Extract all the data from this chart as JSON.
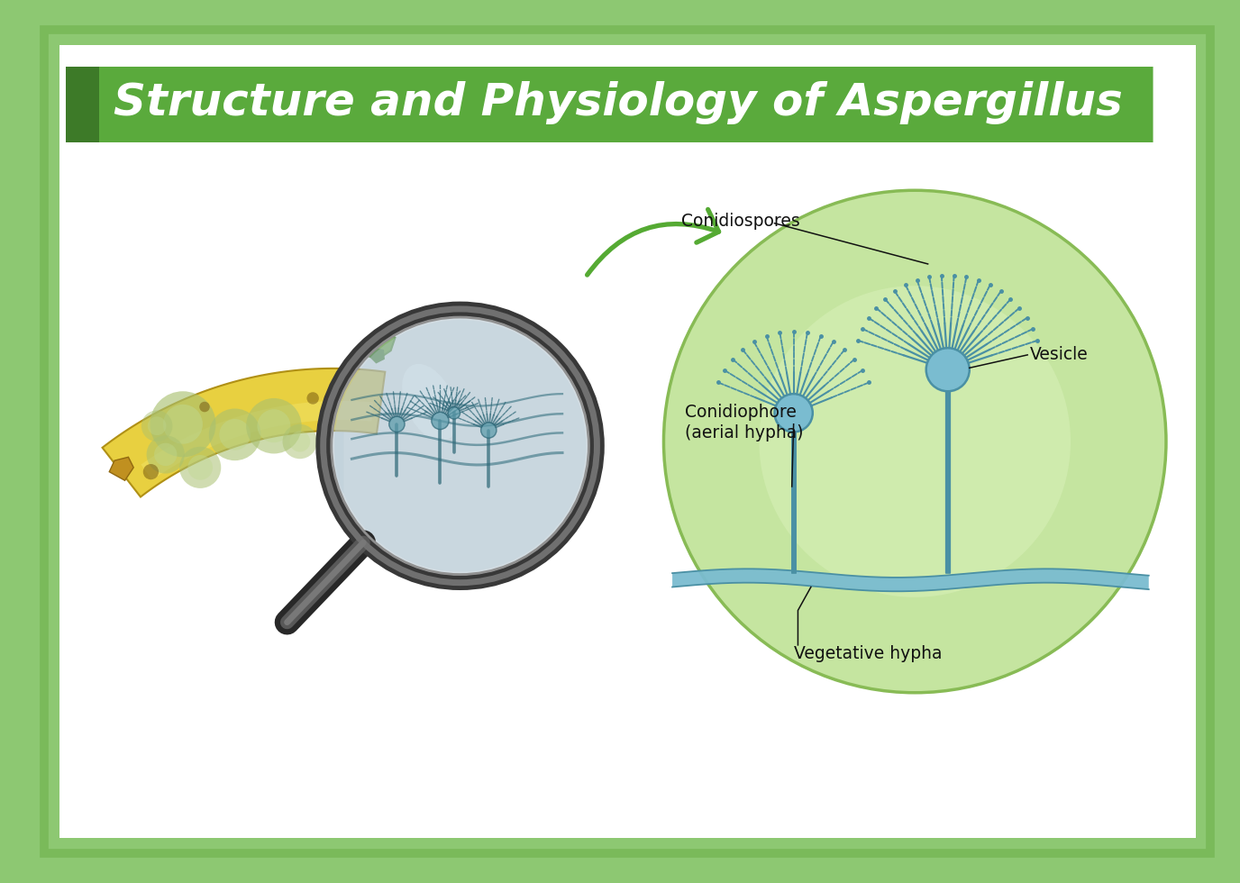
{
  "title": "Structure and Physiology of Aspergillus",
  "title_color": "#ffffff",
  "title_bg_color": "#5aaa3c",
  "title_bg_dark": "#3d7a28",
  "outer_bg": "#8dc872",
  "inner_bg": "#ffffff",
  "border_color": "#7aba5a",
  "circle_bg": "#c8e6a0",
  "circle_border": "#88bb55",
  "fungus_color": "#4a90a4",
  "label_color": "#111111",
  "labels": {
    "conidiospores": "Conidiospores",
    "vesicle": "Vesicle",
    "conidiophore": "Conidiophore\n(aerial hypha)",
    "vegetative": "Vegetative hypha"
  },
  "arrow_color": "#55aa33"
}
